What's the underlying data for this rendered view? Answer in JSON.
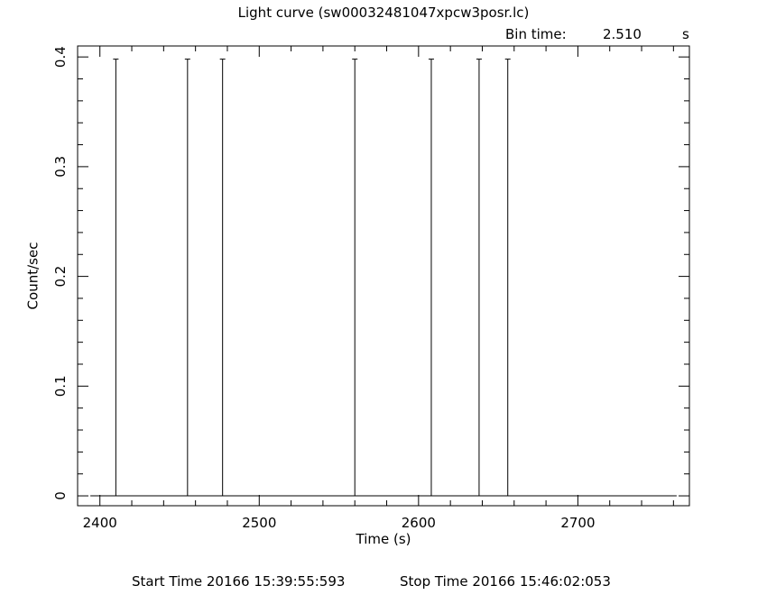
{
  "chart_data": {
    "type": "line",
    "title": "Light curve (sw00032481047xpcw3posr.lc)",
    "bin_time_label": "Bin time:",
    "bin_time_value": "2.510",
    "bin_time_unit": "s",
    "xlabel": "Time (s)",
    "ylabel": "Count/sec",
    "xlim": [
      2386,
      2770
    ],
    "ylim": [
      -0.009,
      0.41
    ],
    "x_ticks": [
      2400,
      2500,
      2600,
      2700
    ],
    "x_tick_labels": [
      "2400",
      "2500",
      "2600",
      "2700"
    ],
    "y_ticks": [
      0,
      0.1,
      0.2,
      0.3,
      0.4
    ],
    "y_tick_labels": [
      "0",
      "0.1",
      "0.2",
      "0.3",
      "0.4"
    ],
    "baseline": {
      "x_start": 2394,
      "x_end": 2762,
      "y": 0
    },
    "spikes": [
      {
        "x": 2410,
        "y": 0.398
      },
      {
        "x": 2455,
        "y": 0.398
      },
      {
        "x": 2477,
        "y": 0.398
      },
      {
        "x": 2560,
        "y": 0.398
      },
      {
        "x": 2608,
        "y": 0.398
      },
      {
        "x": 2638,
        "y": 0.398
      },
      {
        "x": 2656,
        "y": 0.398
      }
    ],
    "grid": false
  },
  "footer": {
    "start_time": "Start Time 20166 15:39:55:593",
    "stop_time": "Stop Time 20166 15:46:02:053"
  }
}
